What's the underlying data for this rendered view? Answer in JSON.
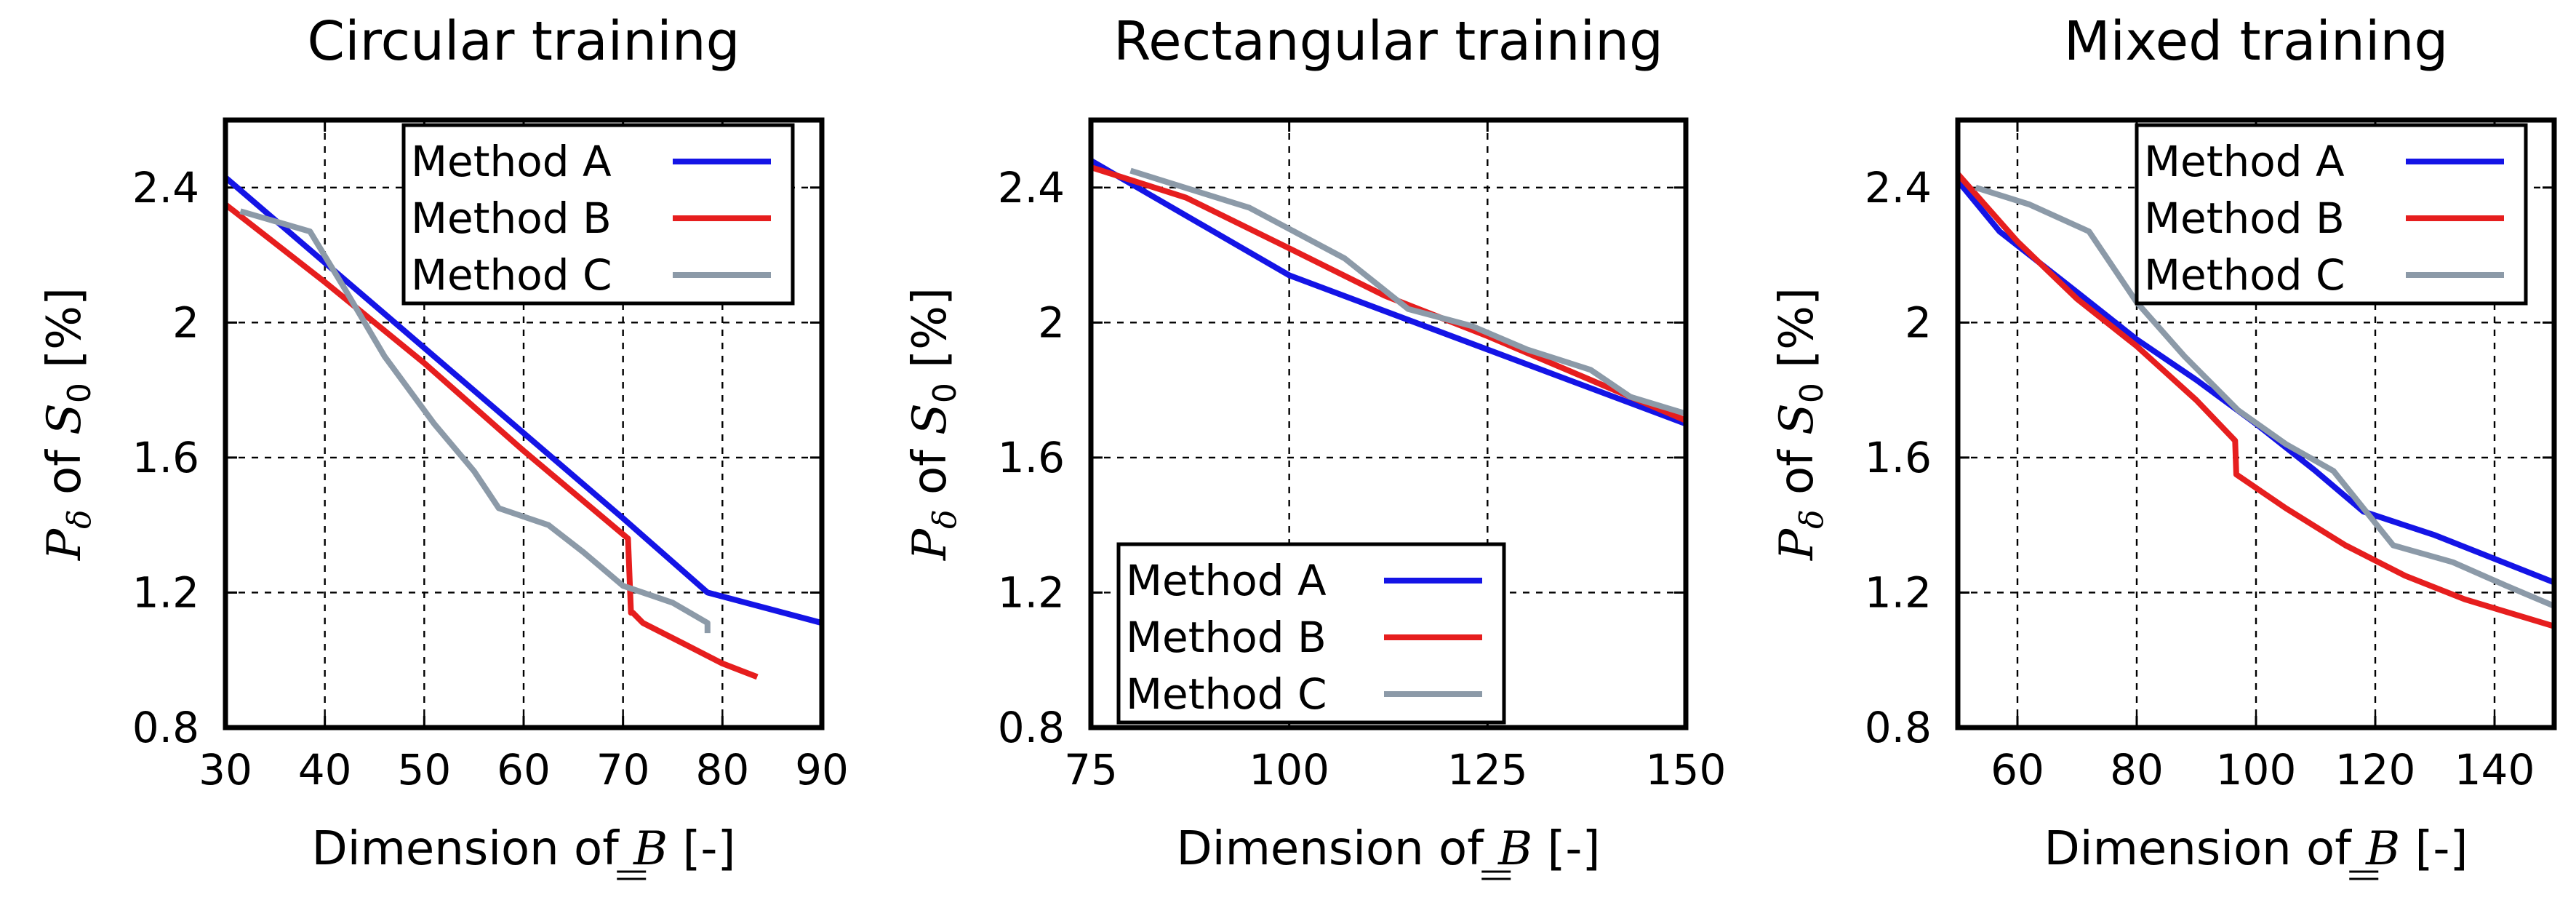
{
  "colors": {
    "method_a": "#1414e6",
    "method_b": "#e61e1e",
    "method_c": "#8c9aa8"
  },
  "chart_data": [
    {
      "type": "line",
      "title": "Circular training",
      "xlabel": "Dimension of B [-]",
      "xlabel_parts": {
        "prefix": "Dimension of ",
        "symbol": "B",
        "suffix": " [-]"
      },
      "ylabel": "P_δ of S_0 [%]",
      "ylabel_parts": {
        "symbol": "P",
        "subscript": "δ",
        "mid": " of ",
        "symbol2": "S",
        "sub2": "0",
        "suffix": " [%]"
      },
      "xlim": [
        30,
        90
      ],
      "ylim": [
        0.8,
        2.6
      ],
      "xticks": [
        30,
        40,
        50,
        60,
        70,
        80,
        90
      ],
      "xtick_labels": [
        "30",
        "40",
        "50",
        "60",
        "70",
        "80",
        "90"
      ],
      "yticks": [
        0.8,
        1.2,
        1.6,
        2.0,
        2.4
      ],
      "ytick_labels": [
        "0.8",
        "1.2",
        "1.6",
        "2",
        "2.4"
      ],
      "grid": true,
      "legend_position": "top-right",
      "series": [
        {
          "name": "Method A",
          "color_key": "method_a",
          "x": [
            30,
            70,
            78.5,
            90
          ],
          "y": [
            2.43,
            1.42,
            1.2,
            1.11
          ]
        },
        {
          "name": "Method B",
          "color_key": "method_b",
          "x": [
            30,
            40,
            50,
            60,
            70.5,
            70.8,
            71,
            72,
            76,
            80,
            83.5
          ],
          "y": [
            2.35,
            2.12,
            1.88,
            1.62,
            1.36,
            1.14,
            1.14,
            1.11,
            1.05,
            0.99,
            0.95
          ]
        },
        {
          "name": "Method C",
          "color_key": "method_c",
          "x": [
            31.5,
            38.5,
            42,
            46,
            51,
            55,
            57.5,
            62.5,
            66,
            70,
            75,
            78.5,
            78.5
          ],
          "y": [
            2.33,
            2.27,
            2.1,
            1.9,
            1.7,
            1.56,
            1.45,
            1.4,
            1.32,
            1.22,
            1.17,
            1.11,
            1.08
          ]
        }
      ]
    },
    {
      "type": "line",
      "title": "Rectangular training",
      "xlabel": "Dimension of B [-]",
      "xlabel_parts": {
        "prefix": "Dimension of ",
        "symbol": "B",
        "suffix": " [-]"
      },
      "ylabel": "P_δ of S_0 [%]",
      "ylabel_parts": {
        "symbol": "P",
        "subscript": "δ",
        "mid": " of ",
        "symbol2": "S",
        "sub2": "0",
        "suffix": " [%]"
      },
      "xlim": [
        75,
        150
      ],
      "ylim": [
        0.8,
        2.6
      ],
      "xticks": [
        75,
        100,
        125,
        150
      ],
      "xtick_labels": [
        "75",
        "100",
        "125",
        "150"
      ],
      "yticks": [
        0.8,
        1.2,
        1.6,
        2.0,
        2.4
      ],
      "ytick_labels": [
        "0.8",
        "1.2",
        "1.6",
        "2",
        "2.4"
      ],
      "grid": true,
      "legend_position": "bottom-left",
      "series": [
        {
          "name": "Method A",
          "color_key": "method_a",
          "x": [
            75,
            100,
            150
          ],
          "y": [
            2.48,
            2.14,
            1.7
          ]
        },
        {
          "name": "Method B",
          "color_key": "method_b",
          "x": [
            75,
            87,
            100,
            112,
            125,
            137,
            150
          ],
          "y": [
            2.46,
            2.37,
            2.22,
            2.08,
            1.96,
            1.84,
            1.71
          ]
        },
        {
          "name": "Method C",
          "color_key": "method_c",
          "x": [
            80,
            95,
            107,
            115,
            123,
            130,
            138,
            143,
            150
          ],
          "y": [
            2.45,
            2.34,
            2.19,
            2.04,
            1.99,
            1.92,
            1.86,
            1.78,
            1.73
          ]
        }
      ]
    },
    {
      "type": "line",
      "title": "Mixed training",
      "xlabel": "Dimension of B [-]",
      "xlabel_parts": {
        "prefix": "Dimension of ",
        "symbol": "B",
        "suffix": " [-]"
      },
      "ylabel": "P_δ of S_0 [%]",
      "ylabel_parts": {
        "symbol": "P",
        "subscript": "δ",
        "mid": " of ",
        "symbol2": "S",
        "sub2": "0",
        "suffix": " [%]"
      },
      "xlim": [
        50,
        150
      ],
      "ylim": [
        0.8,
        2.6
      ],
      "xticks": [
        60,
        80,
        100,
        120,
        140
      ],
      "xtick_labels": [
        "60",
        "80",
        "100",
        "120",
        "140"
      ],
      "yticks": [
        0.8,
        1.2,
        1.6,
        2.0,
        2.4
      ],
      "ytick_labels": [
        "0.8",
        "1.2",
        "1.6",
        "2",
        "2.4"
      ],
      "grid": true,
      "legend_position": "top-right",
      "series": [
        {
          "name": "Method A",
          "color_key": "method_a",
          "x": [
            50,
            57,
            70,
            80,
            90,
            100,
            110,
            118,
            130,
            150
          ],
          "y": [
            2.42,
            2.27,
            2.09,
            1.95,
            1.83,
            1.7,
            1.56,
            1.44,
            1.37,
            1.23
          ]
        },
        {
          "name": "Method B",
          "color_key": "method_b",
          "x": [
            50,
            60,
            70,
            80,
            90,
            96.5,
            96.7,
            105,
            115,
            125,
            135,
            150
          ],
          "y": [
            2.44,
            2.24,
            2.07,
            1.93,
            1.77,
            1.65,
            1.55,
            1.45,
            1.34,
            1.25,
            1.18,
            1.1
          ]
        },
        {
          "name": "Method C",
          "color_key": "method_c",
          "x": [
            53,
            62,
            72,
            80,
            88,
            97,
            105,
            113,
            123,
            133,
            142,
            150
          ],
          "y": [
            2.4,
            2.35,
            2.27,
            2.06,
            1.9,
            1.74,
            1.64,
            1.56,
            1.34,
            1.29,
            1.22,
            1.16
          ]
        }
      ]
    }
  ]
}
